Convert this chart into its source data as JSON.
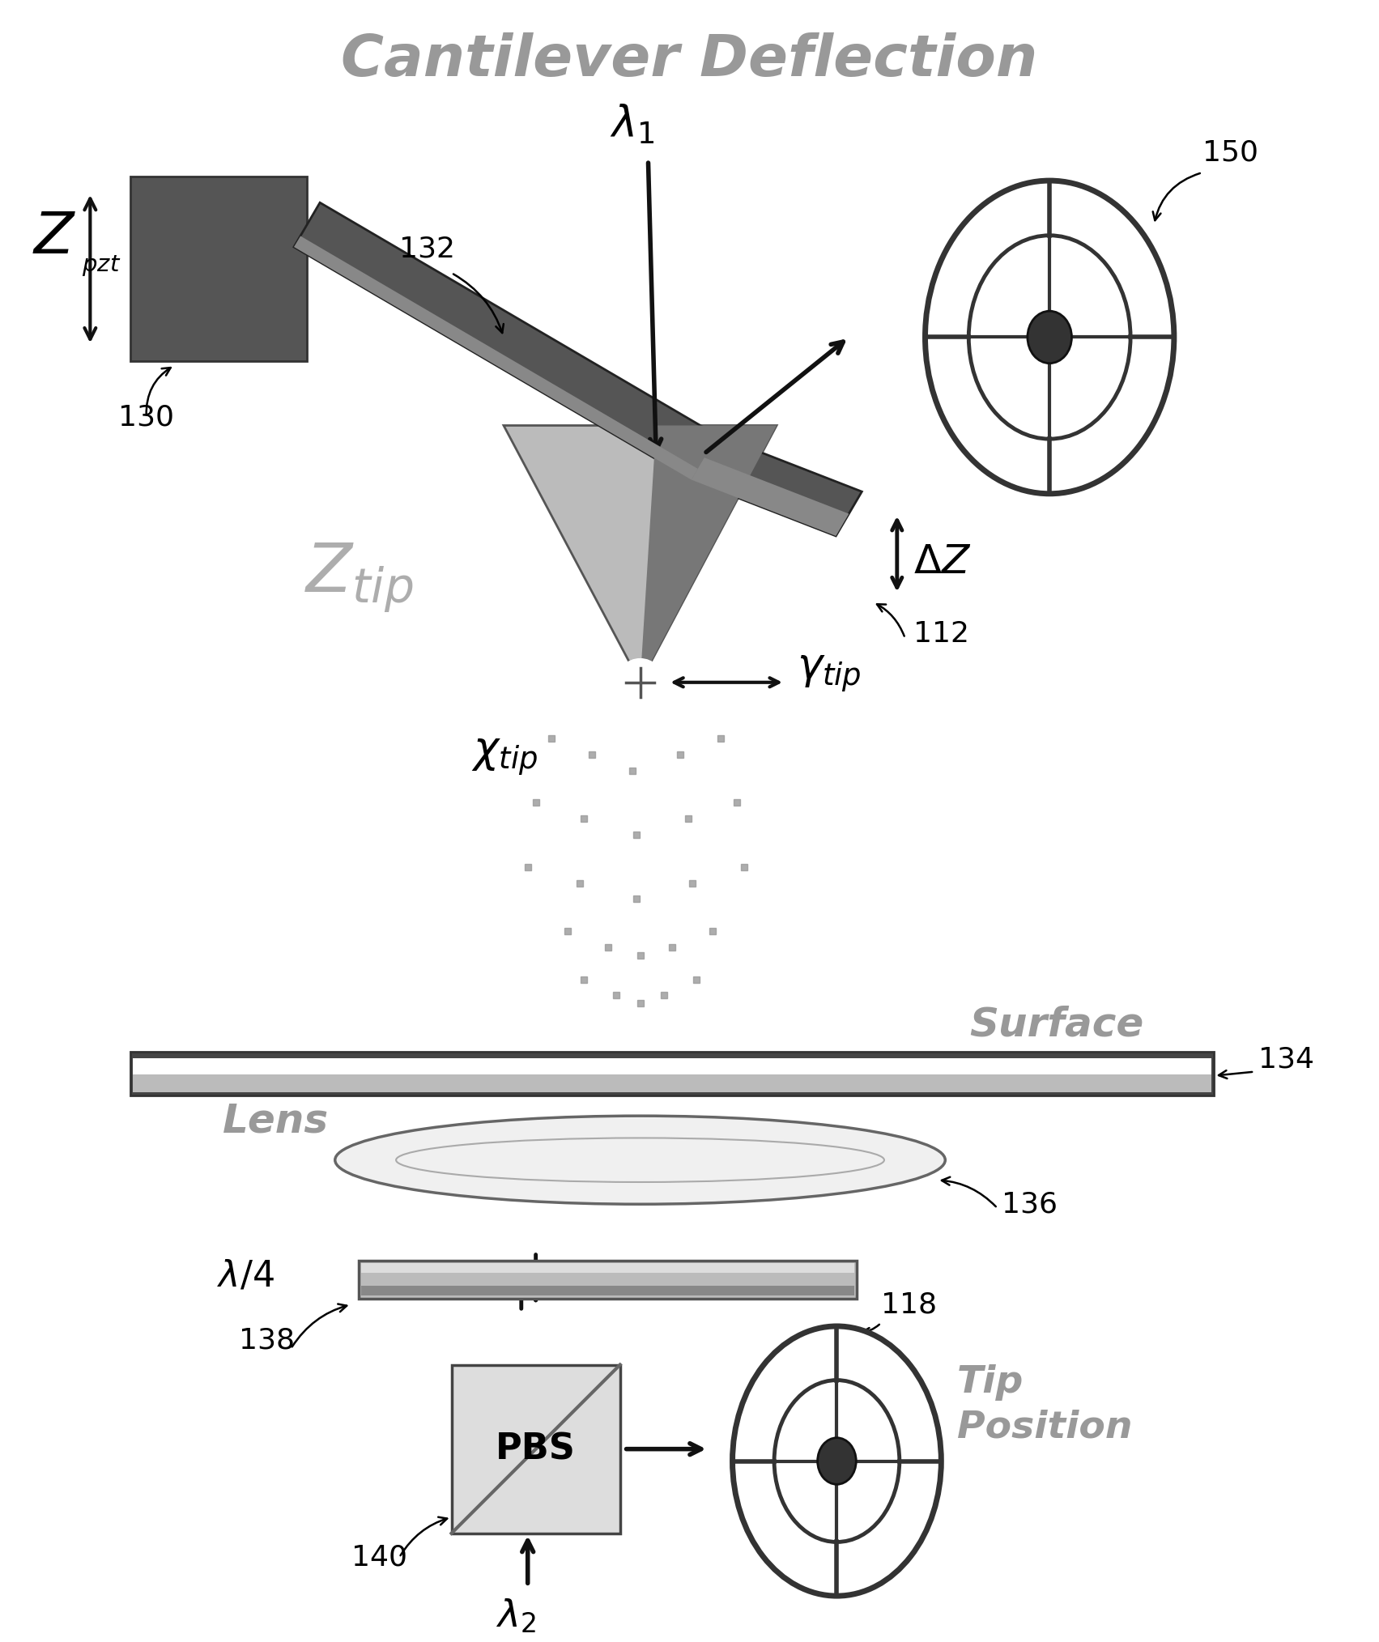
{
  "title": "Cantilever Deflection",
  "title_color": "#999999",
  "title_fontsize": 52,
  "bg_color": "#ffffff",
  "labels": {
    "surface": "Surface",
    "lens": "Lens",
    "pbs": "PBS",
    "tip_position": "Tip\nPosition",
    "ref_130": "130",
    "ref_132": "132",
    "ref_112": "112",
    "ref_134": "134",
    "ref_136": "136",
    "ref_138": "138",
    "ref_140": "140",
    "ref_118": "118",
    "ref_150": "150"
  },
  "colors": {
    "piezo_block": "#555555",
    "arm_dark": "#555555",
    "arm_light": "#888888",
    "tip_cone_light": "#bbbbbb",
    "tip_cone_mid": "#999999",
    "tip_cone_dark": "#777777",
    "detector_ring": "#333333",
    "surface_top": "#e8e8e8",
    "surface_mid": "#ffffff",
    "surface_border": "#666666",
    "lens_edge": "#666666",
    "lens_inner": "#aaaaaa",
    "plate_top": "#cccccc",
    "plate_body": "#aaaaaa",
    "pbs_bg": "#dddddd",
    "pbs_line": "#666666",
    "arrow_black": "#111111",
    "label_gray": "#aaaaaa",
    "dashed_dot": "#999999"
  }
}
